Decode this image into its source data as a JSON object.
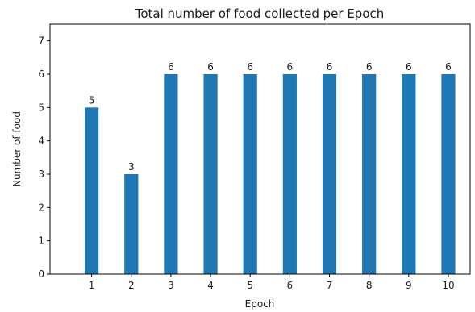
{
  "chart_data": {
    "type": "bar",
    "title": "Total number of food collected per Epoch",
    "xlabel": "Epoch",
    "ylabel": "Number of food",
    "categories": [
      "1",
      "2",
      "3",
      "4",
      "5",
      "6",
      "7",
      "8",
      "9",
      "10"
    ],
    "values": [
      5,
      3,
      6,
      6,
      6,
      6,
      6,
      6,
      6,
      6
    ],
    "data_labels": [
      "5",
      "3",
      "6",
      "6",
      "6",
      "6",
      "6",
      "6",
      "6",
      "6"
    ],
    "ylim": [
      0,
      7.5
    ],
    "yticks": [
      0,
      1,
      2,
      3,
      4,
      5,
      6,
      7
    ],
    "ytick_labels": [
      "0",
      "1",
      "2",
      "3",
      "4",
      "5",
      "6",
      "7"
    ],
    "grid": false,
    "bar_color": "#1f77b4"
  }
}
